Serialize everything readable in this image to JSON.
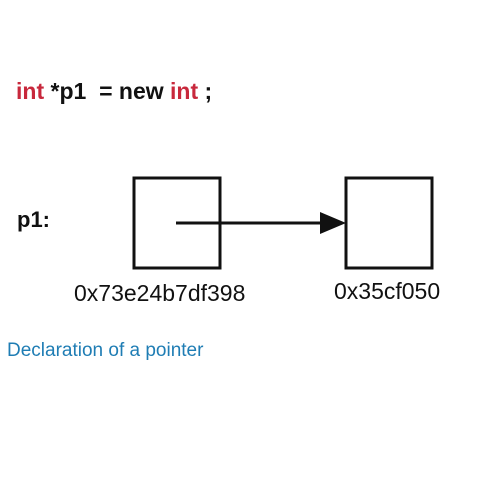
{
  "code": {
    "type_keyword_1": "int",
    "declarator": " *p1  = new ",
    "type_keyword_2": "int",
    "terminator": " ;"
  },
  "colors": {
    "keyword": "#c8283c",
    "text": "#111111",
    "caption": "#1f7db4"
  },
  "diagram": {
    "pointer_label": "p1:",
    "pointer_address": "0x73e24b7df398",
    "heap_address": "0x35cf050"
  },
  "caption": "Declaration of a pointer"
}
